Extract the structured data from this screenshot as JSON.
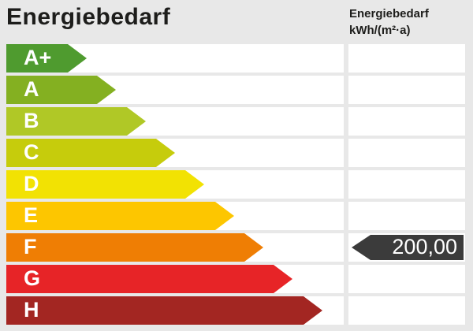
{
  "title": "Energiebedarf",
  "unit_header": {
    "line1": "Energiebedarf",
    "line2": "kWh/(m²·a)"
  },
  "rows": [
    {
      "label": "A+",
      "color": "#4f9b2f",
      "arrow_width": 102
    },
    {
      "label": "A",
      "color": "#84b021",
      "arrow_width": 139
    },
    {
      "label": "B",
      "color": "#b0c826",
      "arrow_width": 177
    },
    {
      "label": "C",
      "color": "#c6cc0c",
      "arrow_width": 214
    },
    {
      "label": "D",
      "color": "#f2e203",
      "arrow_width": 251
    },
    {
      "label": "E",
      "color": "#fdc600",
      "arrow_width": 289
    },
    {
      "label": "F",
      "color": "#ef7e04",
      "arrow_width": 326
    },
    {
      "label": "G",
      "color": "#e72427",
      "arrow_width": 363
    },
    {
      "label": "H",
      "color": "#a32622",
      "arrow_width": 401
    }
  ],
  "indicator": {
    "row": "F",
    "value_label": "200,00",
    "value": 200.0,
    "color": "#3b3b3b",
    "text_color": "#ffffff"
  },
  "colors": {
    "background": "#e8e8e8",
    "track": "#ffffff",
    "text": "#1d1d1b"
  },
  "chart_data": {
    "type": "bar",
    "title": "Energiebedarf",
    "ylabel": "",
    "xlabel": "Energiebedarf kWh/(m²·a)",
    "categories": [
      "A+",
      "A",
      "B",
      "C",
      "D",
      "E",
      "F",
      "G",
      "H"
    ],
    "values": [
      102,
      139,
      177,
      214,
      251,
      289,
      326,
      363,
      401
    ],
    "bar_colors": [
      "#4f9b2f",
      "#84b021",
      "#b0c826",
      "#c6cc0c",
      "#f2e203",
      "#fdc600",
      "#ef7e04",
      "#e72427",
      "#a32622"
    ],
    "indicator": {
      "class": "F",
      "value": 200.0,
      "value_label": "200,00",
      "unit": "kWh/(m²·a)"
    },
    "legend_position": "none",
    "grid": false
  }
}
